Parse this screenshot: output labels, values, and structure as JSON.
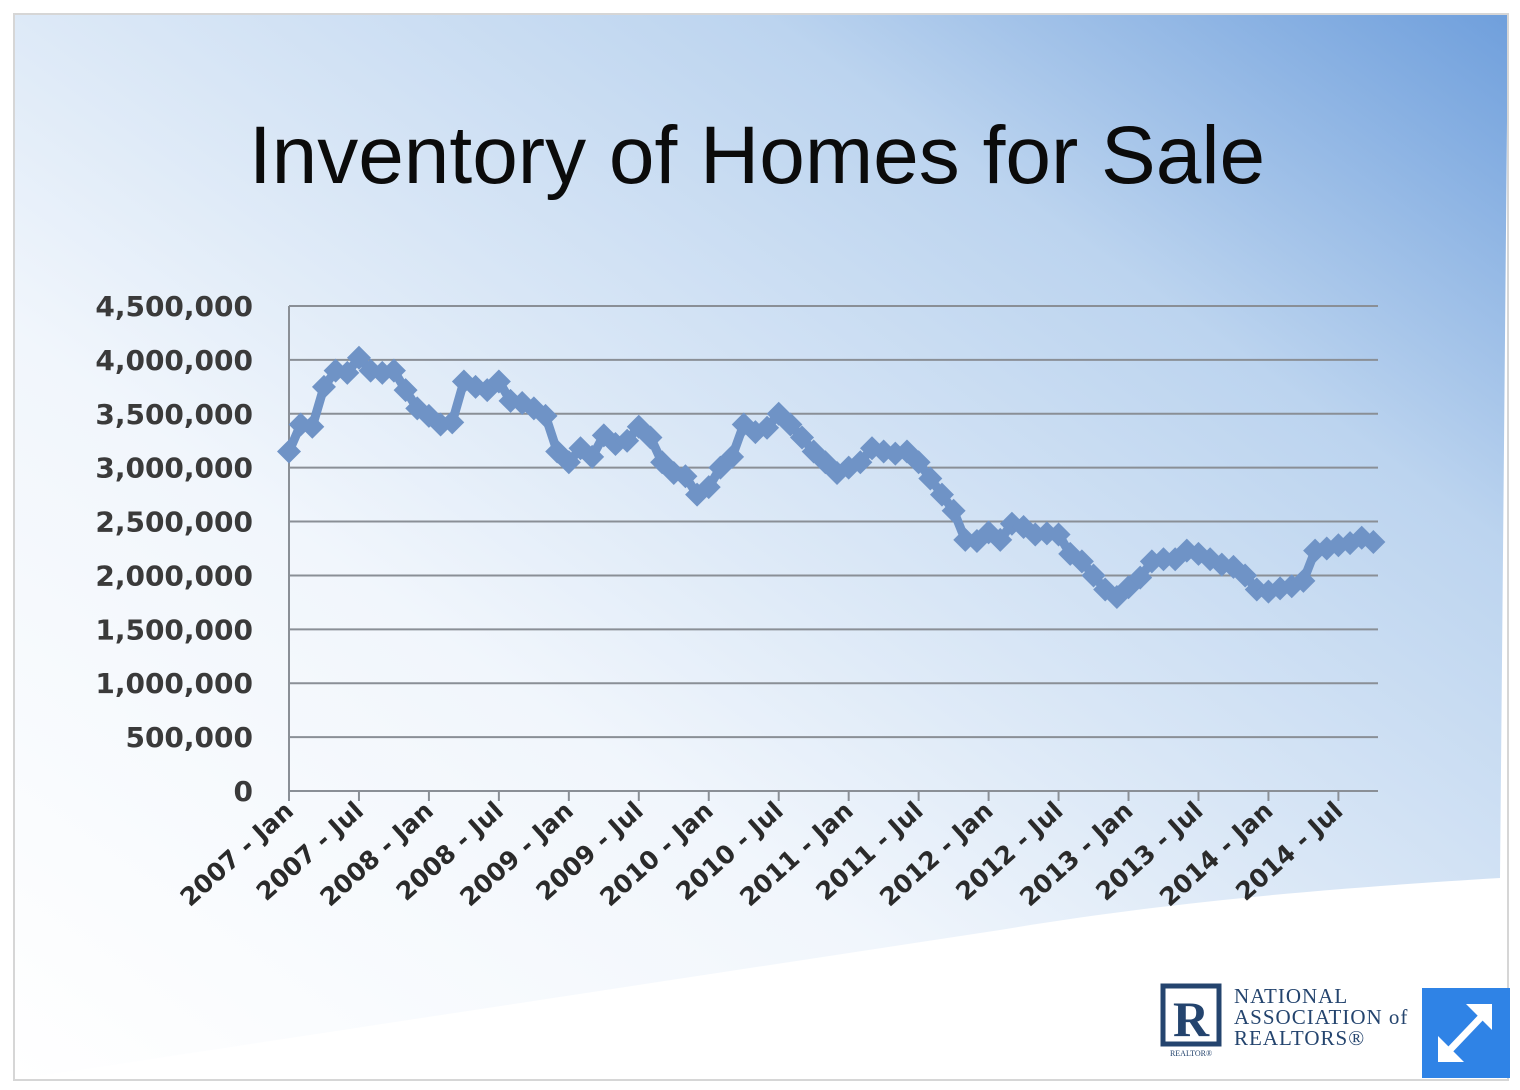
{
  "chart_data": {
    "type": "line",
    "title": "Inventory of Homes for Sale",
    "xlabel": "",
    "ylabel": "",
    "ylim": [
      0,
      4500000
    ],
    "yticks": [
      "0",
      "500,000",
      "1,000,000",
      "1,500,000",
      "2,000,000",
      "2,500,000",
      "3,000,000",
      "3,500,000",
      "4,000,000",
      "4,500,000"
    ],
    "xticks": [
      "2007 - Jan",
      "2007 - Jul",
      "2008 - Jan",
      "2008 - Jul",
      "2009 - Jan",
      "2009 - Jul",
      "2010 - Jan",
      "2010 - Jul",
      "2011 - Jan",
      "2011 - Jul",
      "2012 - Jan",
      "2012 - Jul",
      "2013 - Jan",
      "2013 - Jul",
      "2014 - Jan",
      "2014 - Jul"
    ],
    "grid": true,
    "legend": "none",
    "series": [
      {
        "color": "#6f93c6",
        "x": [
          "2007-01",
          "2007-02",
          "2007-03",
          "2007-04",
          "2007-05",
          "2007-06",
          "2007-07",
          "2007-08",
          "2007-09",
          "2007-10",
          "2007-11",
          "2007-12",
          "2008-01",
          "2008-02",
          "2008-03",
          "2008-04",
          "2008-05",
          "2008-06",
          "2008-07",
          "2008-08",
          "2008-09",
          "2008-10",
          "2008-11",
          "2008-12",
          "2009-01",
          "2009-02",
          "2009-03",
          "2009-04",
          "2009-05",
          "2009-06",
          "2009-07",
          "2009-08",
          "2009-09",
          "2009-10",
          "2009-11",
          "2009-12",
          "2010-01",
          "2010-02",
          "2010-03",
          "2010-04",
          "2010-05",
          "2010-06",
          "2010-07",
          "2010-08",
          "2010-09",
          "2010-10",
          "2010-11",
          "2010-12",
          "2011-01",
          "2011-02",
          "2011-03",
          "2011-04",
          "2011-05",
          "2011-06",
          "2011-07",
          "2011-08",
          "2011-09",
          "2011-10",
          "2011-11",
          "2011-12",
          "2012-01",
          "2012-02",
          "2012-03",
          "2012-04",
          "2012-05",
          "2012-06",
          "2012-07",
          "2012-08",
          "2012-09",
          "2012-10",
          "2012-11",
          "2012-12",
          "2013-01",
          "2013-02",
          "2013-03",
          "2013-04",
          "2013-05",
          "2013-06",
          "2013-07",
          "2013-08",
          "2013-09",
          "2013-10",
          "2013-11",
          "2013-12",
          "2014-01",
          "2014-02",
          "2014-03",
          "2014-04",
          "2014-05",
          "2014-06",
          "2014-07",
          "2014-08",
          "2014-09",
          "2014-10"
        ],
        "y": [
          3150000,
          3400000,
          3380000,
          3750000,
          3900000,
          3880000,
          4020000,
          3900000,
          3880000,
          3900000,
          3720000,
          3550000,
          3480000,
          3400000,
          3420000,
          3800000,
          3750000,
          3720000,
          3800000,
          3620000,
          3600000,
          3550000,
          3480000,
          3150000,
          3050000,
          3180000,
          3100000,
          3300000,
          3220000,
          3250000,
          3380000,
          3280000,
          3050000,
          2950000,
          2920000,
          2750000,
          2820000,
          3000000,
          3100000,
          3400000,
          3330000,
          3370000,
          3500000,
          3400000,
          3280000,
          3150000,
          3050000,
          2950000,
          3000000,
          3050000,
          3180000,
          3150000,
          3130000,
          3150000,
          3050000,
          2900000,
          2750000,
          2600000,
          2330000,
          2320000,
          2400000,
          2330000,
          2480000,
          2450000,
          2380000,
          2390000,
          2380000,
          2200000,
          2130000,
          2000000,
          1870000,
          1800000,
          1890000,
          1980000,
          2130000,
          2150000,
          2150000,
          2230000,
          2200000,
          2150000,
          2100000,
          2080000,
          2000000,
          1870000,
          1850000,
          1880000,
          1900000,
          1950000,
          2230000,
          2250000,
          2280000,
          2300000,
          2350000,
          2310000
        ]
      }
    ]
  },
  "logo": {
    "mark": "R",
    "mark_sub": "REALTOR®",
    "line1": "NATIONAL",
    "line2": "ASSOCIATION of",
    "line3": "REALTORS®"
  },
  "expand_icon": "expand-arrows-icon"
}
